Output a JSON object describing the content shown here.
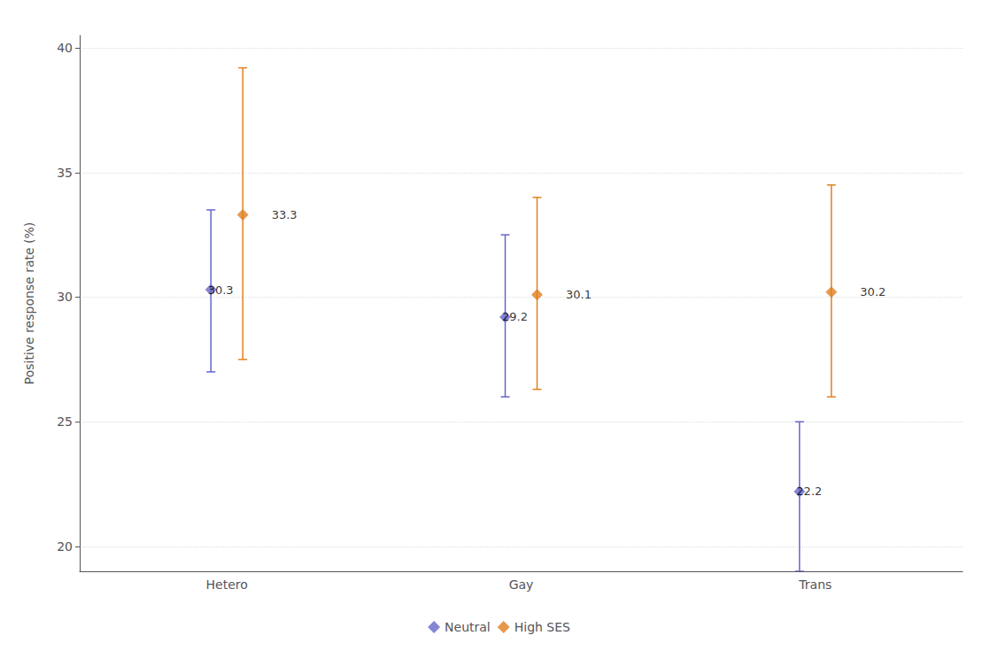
{
  "chart_data": {
    "type": "scatter",
    "marker": "diamond",
    "categories": [
      "Hetero",
      "Gay",
      "Trans"
    ],
    "series": [
      {
        "name": "Neutral",
        "color": "#6666cc",
        "values": [
          30.3,
          29.2,
          22.2
        ],
        "ci_low": [
          27.0,
          26.0,
          19.0
        ],
        "ci_high": [
          33.5,
          32.5,
          25.0
        ]
      },
      {
        "name": "High SES",
        "color": "#e08020",
        "values": [
          33.3,
          30.1,
          30.2
        ],
        "ci_low": [
          27.5,
          26.3,
          26.0
        ],
        "ci_high": [
          39.2,
          34.0,
          34.5
        ]
      }
    ],
    "ylabel": "Positive response rate (%)",
    "ylim": [
      19,
      40.5
    ],
    "yticks": [
      20,
      25,
      30,
      35,
      40
    ],
    "grid": true,
    "legend": "bottom",
    "data_labels": true
  }
}
